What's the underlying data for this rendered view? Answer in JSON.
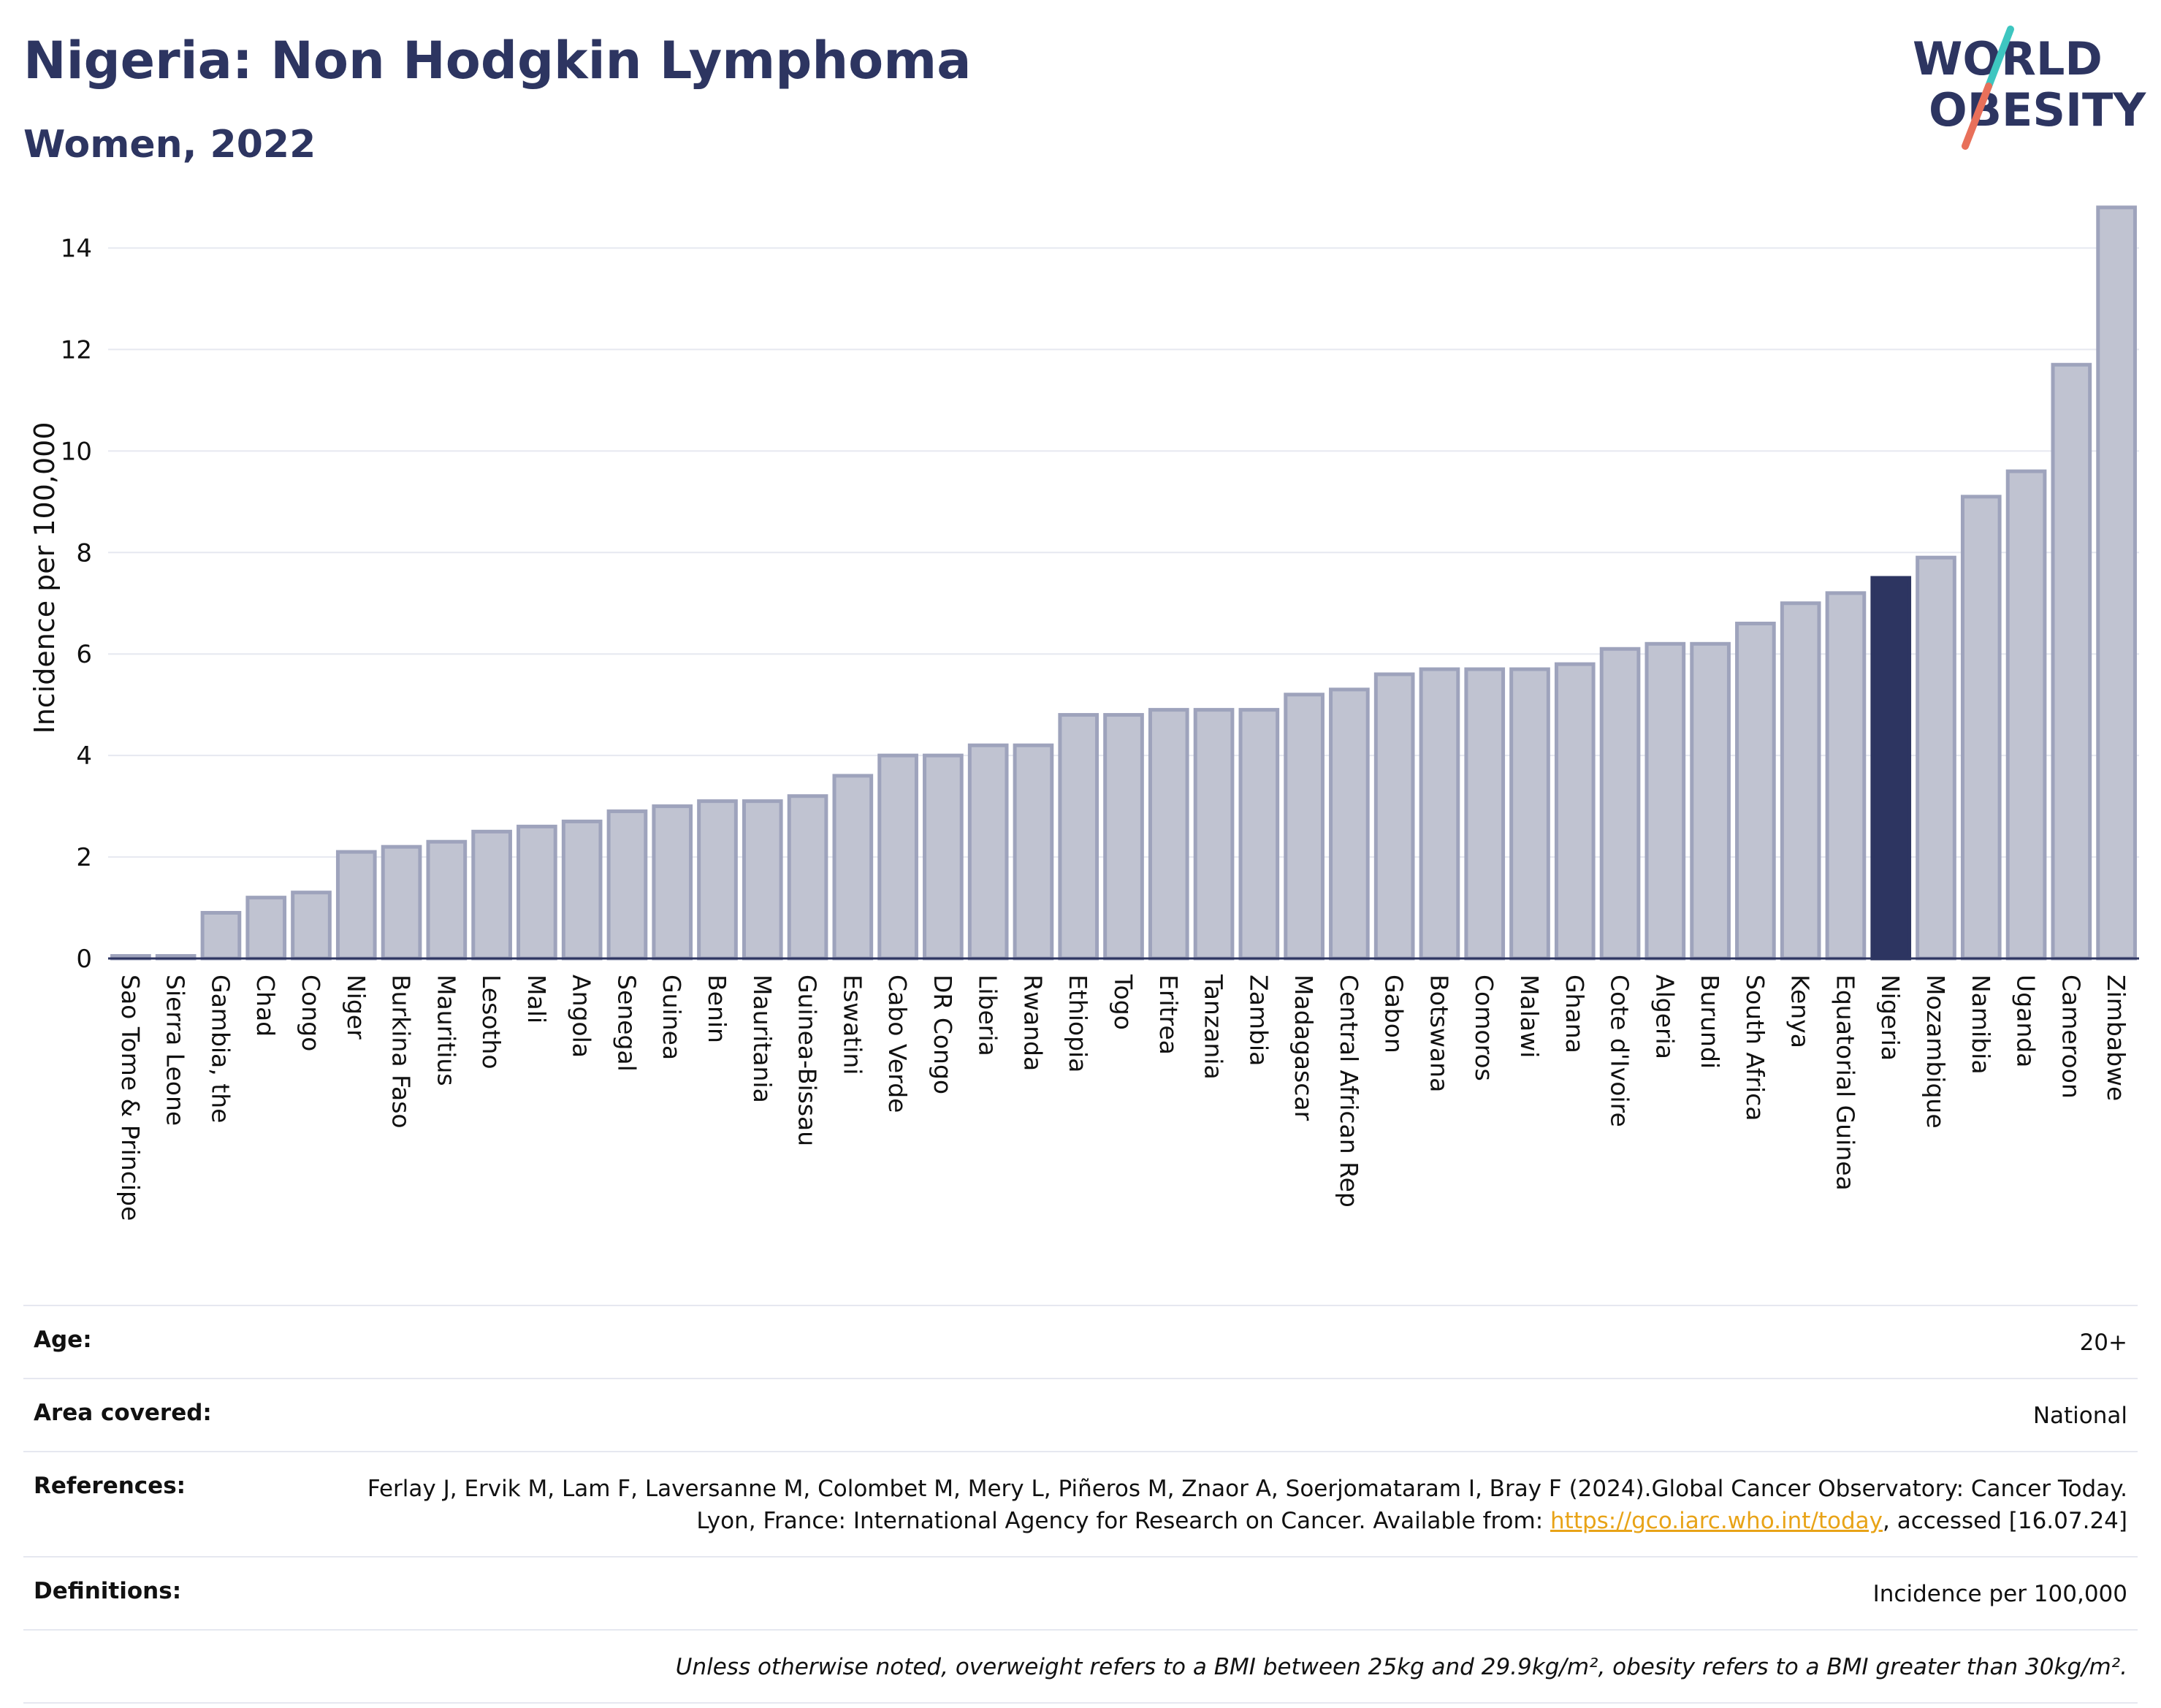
{
  "header": {
    "title": "Nigeria: Non Hodgkin Lymphoma",
    "subtitle": "Women, 2022"
  },
  "logo": {
    "line1": "WORLD",
    "line2": "OBESITY",
    "slash_colors": [
      "#3ec6c0",
      "#e8705a"
    ]
  },
  "colors": {
    "bar": "#c0c3d1",
    "bar_border": "#9ea3bc",
    "highlight": "#2d3561",
    "grid": "#e6e8f0"
  },
  "chart_data": {
    "type": "bar",
    "ylabel": "Incidence per 100,000",
    "xlabel": "",
    "ylim": [
      0,
      15
    ],
    "yticks": [
      0,
      2,
      4,
      6,
      8,
      10,
      12,
      14
    ],
    "highlight": "Nigeria",
    "grid": true,
    "categories": [
      "Sao Tome & Principe",
      "Sierra Leone",
      "Gambia, the",
      "Chad",
      "Congo",
      "Niger",
      "Burkina Faso",
      "Mauritius",
      "Lesotho",
      "Mali",
      "Angola",
      "Senegal",
      "Guinea",
      "Benin",
      "Mauritania",
      "Guinea-Bissau",
      "Eswatini",
      "Cabo Verde",
      "DR Congo",
      "Liberia",
      "Rwanda",
      "Ethiopia",
      "Togo",
      "Eritrea",
      "Tanzania",
      "Zambia",
      "Madagascar",
      "Central African Rep",
      "Gabon",
      "Botswana",
      "Comoros",
      "Malawi",
      "Ghana",
      "Cote d'Ivoire",
      "Algeria",
      "Burundi",
      "South Africa",
      "Kenya",
      "Equatorial Guinea",
      "Nigeria",
      "Mozambique",
      "Namibia",
      "Uganda",
      "Cameroon",
      "Zimbabwe"
    ],
    "values": [
      0.05,
      0.05,
      0.9,
      1.2,
      1.3,
      2.1,
      2.2,
      2.3,
      2.5,
      2.6,
      2.7,
      2.9,
      3.0,
      3.1,
      3.1,
      3.2,
      3.6,
      4.0,
      4.0,
      4.2,
      4.2,
      4.8,
      4.8,
      4.9,
      4.9,
      4.9,
      5.2,
      5.3,
      5.6,
      5.7,
      5.7,
      5.7,
      5.8,
      6.1,
      6.2,
      6.2,
      6.6,
      7.0,
      7.2,
      7.5,
      7.9,
      9.1,
      9.6,
      11.7,
      14.8
    ]
  },
  "info": {
    "age_label": "Age:",
    "age_value": "20+",
    "area_label": "Area covered:",
    "area_value": "National",
    "references_label": "References:",
    "references_text": "Ferlay J, Ervik M, Lam F, Laversanne M, Colombet M, Mery L, Piñeros M, Znaor A, Soerjomataram I, Bray F (2024).Global Cancer Observatory: Cancer Today. Lyon, France: International Agency for Research on Cancer. Available from:",
    "references_link": "https://gco.iarc.who.int/today",
    "references_suffix": ", accessed [16.07.24]",
    "definitions_label": "Definitions:",
    "definitions_value": "Incidence per 100,000",
    "note": "Unless otherwise noted, overweight refers to a BMI between 25kg and 29.9kg/m², obesity refers to a BMI greater than 30kg/m²."
  }
}
